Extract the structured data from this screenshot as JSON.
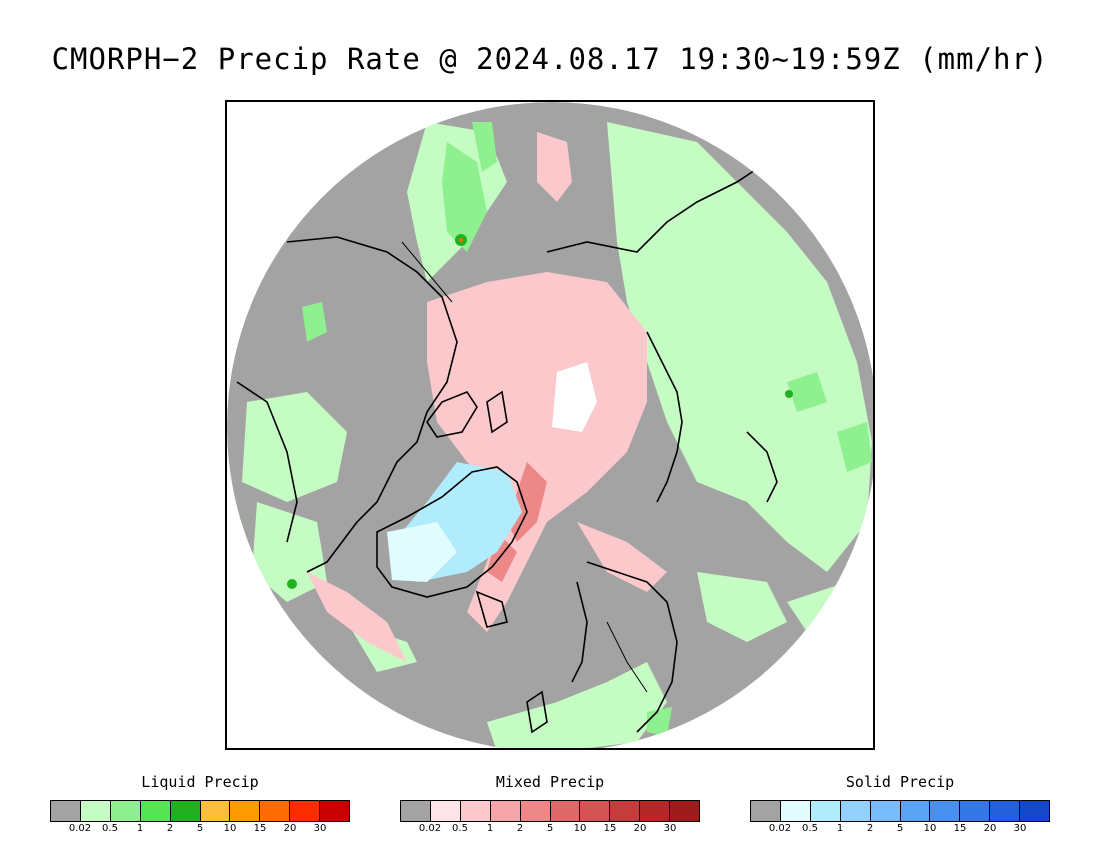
{
  "title": "CMORPH−2 Precip Rate @ 2024.08.17 19:30~19:59Z (mm/hr)",
  "legends": [
    {
      "id": "liquid",
      "title": "Liquid Precip",
      "colors": [
        "#a3a3a3",
        "#c4fcc4",
        "#8ef08e",
        "#54e454",
        "#20b020",
        "#fcbc3c",
        "#fc9c00",
        "#fc6c00",
        "#fc2c00",
        "#c80000"
      ],
      "ticks": [
        "0.02",
        "0.5",
        "1",
        "2",
        "5",
        "10",
        "15",
        "20",
        "30"
      ]
    },
    {
      "id": "mixed",
      "title": "Mixed Precip",
      "colors": [
        "#a3a3a3",
        "#fde4e8",
        "#fbc8cc",
        "#f4a6a8",
        "#ec8888",
        "#e06868",
        "#d45454",
        "#c43c3c",
        "#b42828",
        "#a01c1c"
      ],
      "ticks": [
        "0.02",
        "0.5",
        "1",
        "2",
        "5",
        "10",
        "15",
        "20",
        "30"
      ]
    },
    {
      "id": "solid",
      "title": "Solid Precip",
      "colors": [
        "#a3a3a3",
        "#e0fcfc",
        "#b0ecfc",
        "#94d0fc",
        "#78bcfc",
        "#5aa4f4",
        "#4890f0",
        "#3478e8",
        "#2460dc",
        "#1448c8"
      ],
      "ticks": [
        "0.02",
        "0.5",
        "1",
        "2",
        "5",
        "10",
        "15",
        "20",
        "30"
      ]
    }
  ]
}
